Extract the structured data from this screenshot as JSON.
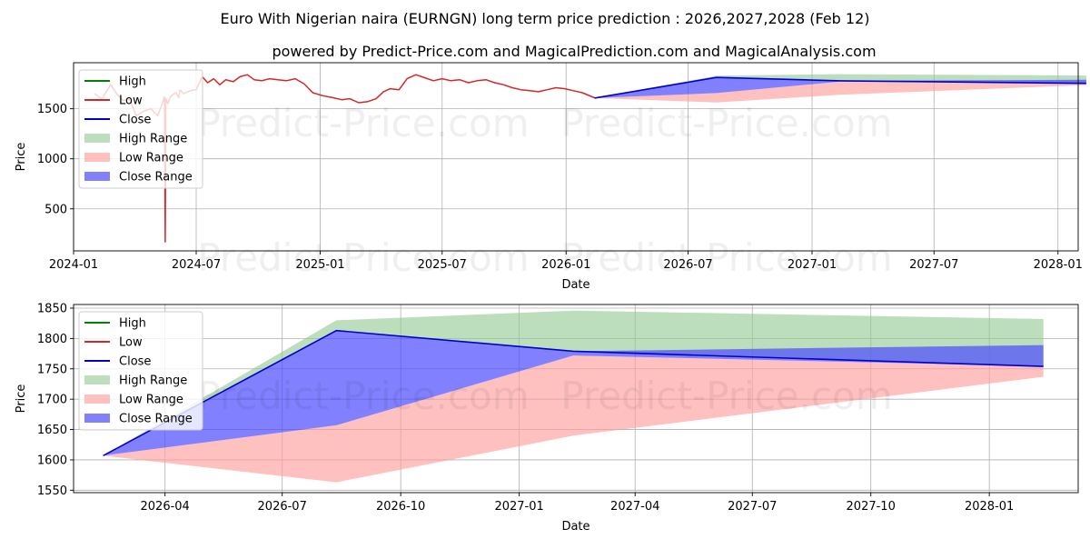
{
  "title": "Euro With Nigerian naira (EURNGN) long term price prediction : 2026,2027,2028 (Feb 12)",
  "subtitle": "powered by Predict-Price.com and MagicalPrediction.com and MagicalAnalysis.com",
  "watermark": "Predict-Price.com",
  "colors": {
    "high": "#008000",
    "low": "#d62728",
    "close": "#0000cd",
    "high_range": "#90c890",
    "low_range": "#ff9e9e",
    "close_range": "#4b4bff",
    "grid": "#b0b0b0"
  },
  "chart_data": [
    {
      "type": "line",
      "panel": "top",
      "xlabel": "Date",
      "ylabel": "Price",
      "xlim": [
        "2024-01-01",
        "2028-01-31"
      ],
      "ylim": [
        80,
        1960
      ],
      "x_ticks": [
        "2024-01",
        "2024-07",
        "2025-01",
        "2025-07",
        "2026-01",
        "2026-07",
        "2027-01",
        "2027-07",
        "2028-01"
      ],
      "y_ticks": [
        500,
        1000,
        1500
      ],
      "legend_position": "upper left",
      "legend": [
        "High",
        "Low",
        "Close",
        "High Range",
        "Low Range",
        "Close Range"
      ],
      "history": {
        "x": [
          "2024-02-01",
          "2024-02-12",
          "2024-02-25",
          "2024-03-06",
          "2024-03-15",
          "2024-03-24",
          "2024-04-03",
          "2024-04-15",
          "2024-04-25",
          "2024-05-05",
          "2024-05-12",
          "2024-05-15",
          "2024-05-16",
          "2024-05-17",
          "2024-05-20",
          "2024-05-23",
          "2024-05-27",
          "2024-06-01",
          "2024-06-05",
          "2024-06-07",
          "2024-06-12",
          "2024-06-22",
          "2024-07-01",
          "2024-07-10",
          "2024-07-18",
          "2024-07-27",
          "2024-08-05",
          "2024-08-14",
          "2024-08-25",
          "2024-09-04",
          "2024-09-15",
          "2024-09-25",
          "2024-10-06",
          "2024-10-18",
          "2024-10-30",
          "2024-11-12",
          "2024-11-25",
          "2024-12-08",
          "2024-12-21",
          "2025-01-05",
          "2025-01-20",
          "2025-02-02",
          "2025-02-14",
          "2025-02-27",
          "2025-03-12",
          "2025-03-25",
          "2025-04-05",
          "2025-04-15",
          "2025-04-28",
          "2025-05-10",
          "2025-05-23",
          "2025-06-05",
          "2025-06-18",
          "2025-07-01",
          "2025-07-14",
          "2025-07-27",
          "2025-08-09",
          "2025-08-22",
          "2025-09-04",
          "2025-09-17",
          "2025-09-30",
          "2025-10-13",
          "2025-10-26",
          "2025-11-08",
          "2025-11-21",
          "2025-12-04",
          "2025-12-17",
          "2025-12-30",
          "2026-01-12",
          "2026-01-25",
          "2026-02-12"
        ],
        "low": [
          1650,
          1600,
          1740,
          1640,
          1580,
          1600,
          1430,
          1480,
          1500,
          1430,
          1560,
          1620,
          170,
          1600,
          1550,
          1610,
          1640,
          1660,
          1610,
          1690,
          1650,
          1680,
          1690,
          1820,
          1760,
          1800,
          1740,
          1790,
          1770,
          1820,
          1840,
          1790,
          1780,
          1800,
          1790,
          1780,
          1800,
          1750,
          1660,
          1630,
          1610,
          1590,
          1600,
          1560,
          1570,
          1600,
          1670,
          1700,
          1690,
          1800,
          1840,
          1810,
          1780,
          1800,
          1780,
          1790,
          1760,
          1780,
          1790,
          1760,
          1740,
          1710,
          1690,
          1680,
          1670,
          1690,
          1710,
          1700,
          1680,
          1660,
          1610
        ]
      },
      "forecast": {
        "x": [
          "2026-02-12",
          "2026-08-12",
          "2027-02-12",
          "2028-02-12"
        ],
        "close": [
          1607,
          1813,
          1779,
          1754
        ],
        "high_range_upper": [
          1607,
          1830,
          1846,
          1832
        ],
        "high_range_lower": [
          1607,
          1813,
          1779,
          1754
        ],
        "low_range_upper": [
          1607,
          1657,
          1772,
          1754
        ],
        "low_range_lower": [
          1607,
          1563,
          1640,
          1737
        ],
        "close_range_upper": [
          1607,
          1813,
          1779,
          1789
        ],
        "close_range_lower": [
          1607,
          1657,
          1772,
          1754
        ]
      }
    },
    {
      "type": "line",
      "panel": "bottom",
      "xlabel": "Date",
      "ylabel": "Price",
      "xlim": [
        "2026-01-20",
        "2028-03-10"
      ],
      "ylim": [
        1546,
        1856
      ],
      "x_ticks": [
        "2026-04",
        "2026-07",
        "2026-10",
        "2027-01",
        "2027-04",
        "2027-07",
        "2027-10",
        "2028-01"
      ],
      "y_ticks": [
        1550,
        1600,
        1650,
        1700,
        1750,
        1800,
        1850
      ],
      "legend_position": "upper left",
      "legend": [
        "High",
        "Low",
        "Close",
        "High Range",
        "Low Range",
        "Close Range"
      ],
      "forecast": {
        "x": [
          "2026-02-12",
          "2026-08-12",
          "2027-02-12",
          "2028-02-12"
        ],
        "close": [
          1607,
          1813,
          1779,
          1754
        ],
        "high_range_upper": [
          1607,
          1830,
          1846,
          1832
        ],
        "high_range_lower": [
          1607,
          1813,
          1779,
          1754
        ],
        "low_range_upper": [
          1607,
          1657,
          1772,
          1754
        ],
        "low_range_lower": [
          1607,
          1563,
          1640,
          1737
        ],
        "close_range_upper": [
          1607,
          1813,
          1779,
          1789
        ],
        "close_range_lower": [
          1607,
          1657,
          1772,
          1754
        ]
      }
    }
  ]
}
